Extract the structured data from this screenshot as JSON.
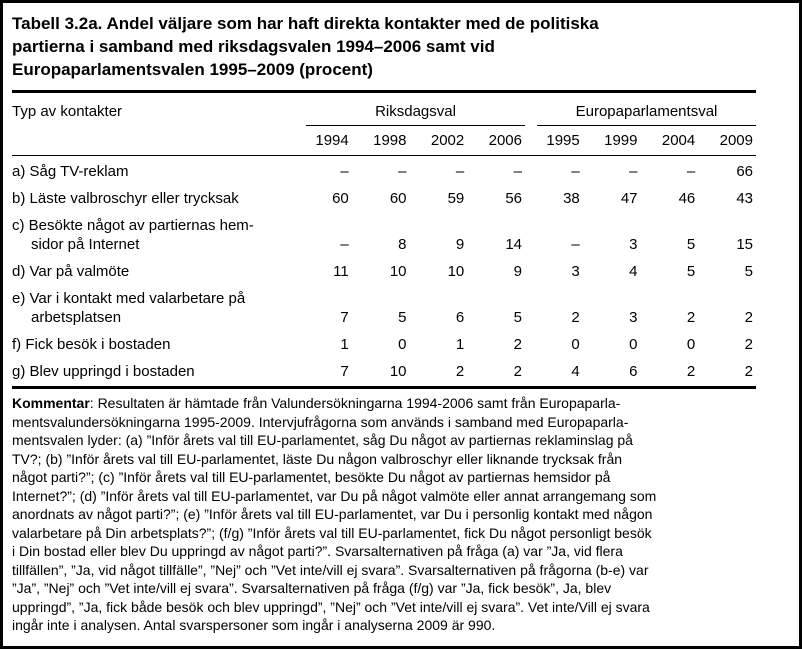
{
  "title_lines": [
    "Tabell 3.2a. Andel väljare som har haft direkta kontakter med de politiska",
    "partierna i samband med riksdagsvalen 1994–2006 samt vid",
    "Europaparlamentsvalen 1995–2009 (procent)"
  ],
  "table": {
    "row_header": "Typ av kontakter",
    "groups": [
      {
        "label": "Riksdagsval",
        "years": [
          "1994",
          "1998",
          "2002",
          "2006"
        ]
      },
      {
        "label": "Europaparlamentsval",
        "years": [
          "1995",
          "1999",
          "2004",
          "2009"
        ]
      }
    ],
    "rows": [
      {
        "label_lines": [
          "a) Såg TV-reklam"
        ],
        "values": [
          "–",
          "–",
          "–",
          "–",
          "–",
          "–",
          "–",
          "66"
        ]
      },
      {
        "label_lines": [
          "b) Läste valbroschyr eller trycksak"
        ],
        "values": [
          "60",
          "60",
          "59",
          "56",
          "38",
          "47",
          "46",
          "43"
        ]
      },
      {
        "label_lines": [
          "c) Besökte något av partiernas hem-",
          "sidor på Internet"
        ],
        "values": [
          "–",
          "8",
          "9",
          "14",
          "–",
          "3",
          "5",
          "15"
        ]
      },
      {
        "label_lines": [
          "d) Var på valmöte"
        ],
        "values": [
          "11",
          "10",
          "10",
          "9",
          "3",
          "4",
          "5",
          "5"
        ]
      },
      {
        "label_lines": [
          "e) Var i kontakt med valarbetare på",
          "arbetsplatsen"
        ],
        "values": [
          "7",
          "5",
          "6",
          "5",
          "2",
          "3",
          "2",
          "2"
        ]
      },
      {
        "label_lines": [
          "f) Fick besök i bostaden"
        ],
        "values": [
          "1",
          "0",
          "1",
          "2",
          "0",
          "0",
          "0",
          "2"
        ]
      },
      {
        "label_lines": [
          "g) Blev uppringd i bostaden"
        ],
        "values": [
          "7",
          "10",
          "2",
          "2",
          "4",
          "6",
          "2",
          "2"
        ]
      }
    ]
  },
  "comment": {
    "bold_label": "Kommentar",
    "lines": [
      ": Resultaten är hämtade från Valundersökningarna 1994-2006 samt från Europaparla-",
      "mentsvalundersökningarna 1995-2009. Intervjufrågorna som används i samband med Europaparla-",
      "mentsvalen lyder: (a) ”Inför årets val till EU-parlamentet, såg Du något av partiernas reklaminslag på",
      "TV?; (b) ”Inför årets val till EU-parlamentet, läste Du någon valbroschyr eller liknande trycksak från",
      "något parti?”; (c) ”Inför årets val till EU-parlamentet, besökte Du något av partiernas hemsidor på",
      "Internet?”; (d) ”Inför årets val till EU-parlamentet, var Du på något valmöte eller annat arrangemang som",
      "anordnats av något parti?”; (e) ”Inför årets val till EU-parlamentet, var Du i personlig kontakt med någon",
      "valarbetare på Din arbetsplats?”; (f/g) ”Inför årets val till EU-parlamentet, fick Du något personligt besök",
      "i Din bostad eller blev Du uppringd av något parti?”. Svarsalternativen på fråga (a) var ”Ja, vid flera",
      "tillfällen”, ”Ja, vid något tillfälle”, ”Nej” och ”Vet inte/vill ej svara”. Svarsalternativen på frågorna (b-e) var",
      "”Ja”, ”Nej” och ”Vet inte/vill ej svara”. Svarsalternativen på fråga (f/g) var ”Ja, fick besök”, Ja, blev",
      "uppringd”, ”Ja, fick både besök och blev uppringd”, ”Nej” och ”Vet inte/vill ej svara”. Vet inte/Vill ej svara",
      "ingår inte i analysen. Antal svarspersoner som ingår i analyserna 2009 är 990."
    ]
  },
  "colors": {
    "text": "#000000",
    "border": "#000000",
    "background": "#ffffff"
  }
}
